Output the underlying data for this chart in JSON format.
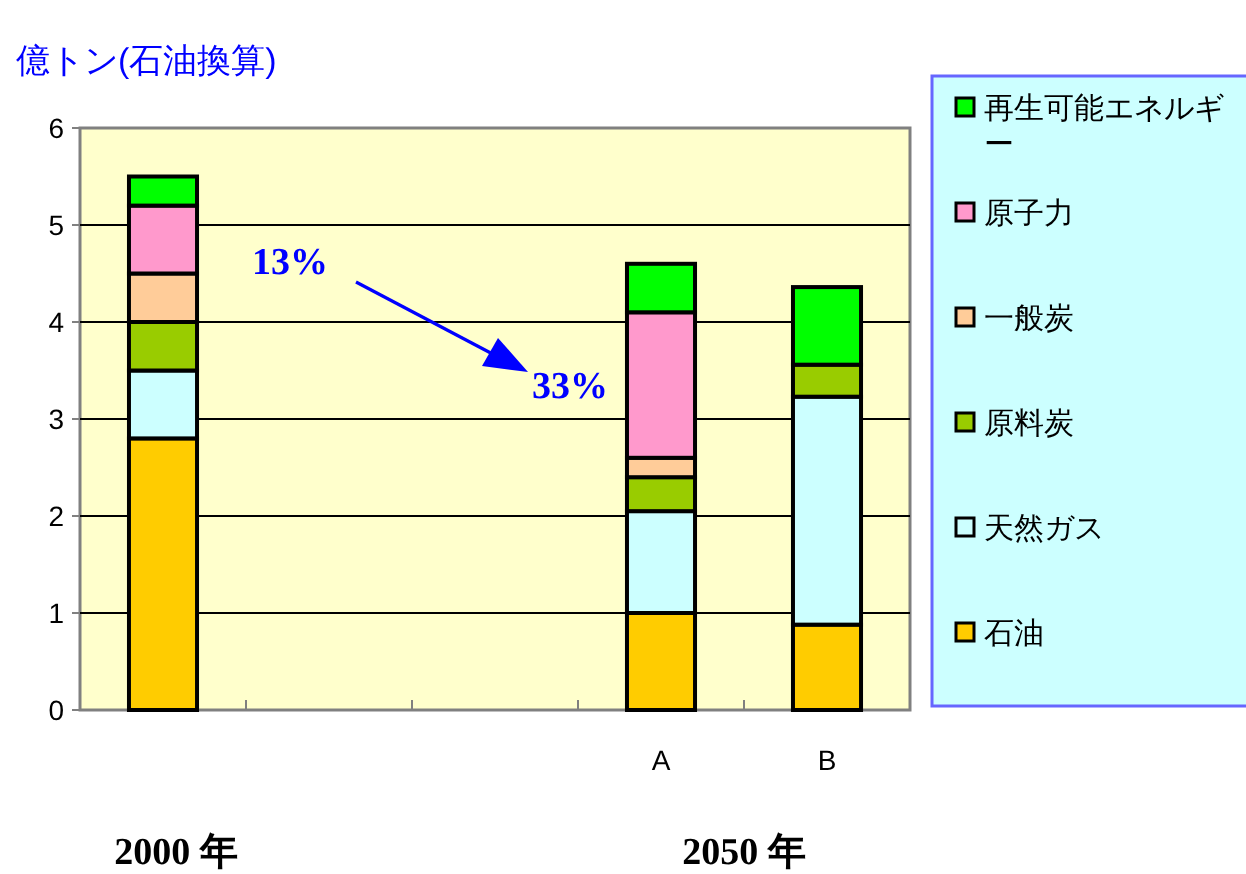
{
  "chart_data": {
    "type": "bar",
    "stacked": true,
    "ylabel": "億トン(石油換算)",
    "categories": [
      null,
      null,
      null,
      "A",
      "B"
    ],
    "series": [
      {
        "name": "石油",
        "color": "#ffcc00",
        "values": [
          2.8,
          null,
          null,
          1.0,
          0.88
        ]
      },
      {
        "name": "天然ガス",
        "color": "#ccffff",
        "values": [
          0.7,
          null,
          null,
          1.05,
          2.35
        ]
      },
      {
        "name": "原料炭",
        "color": "#99cc00",
        "values": [
          0.5,
          null,
          null,
          0.35,
          0.33
        ]
      },
      {
        "name": "一般炭",
        "color": "#ffcc99",
        "values": [
          0.5,
          null,
          null,
          0.2,
          null
        ]
      },
      {
        "name": "原子力",
        "color": "#ff99cc",
        "values": [
          0.7,
          null,
          null,
          1.5,
          null
        ]
      },
      {
        "name": "再生可能エネルギー",
        "color": "#00ff00",
        "values": [
          0.3,
          null,
          null,
          0.5,
          0.8
        ]
      }
    ],
    "ylim": [
      0,
      6
    ],
    "yticks": [
      0,
      1,
      2,
      3,
      4,
      5,
      6
    ],
    "grid": "y",
    "legend": "right",
    "annotations": [
      "13%",
      "33%",
      "2000 年",
      "2050 年"
    ]
  }
}
